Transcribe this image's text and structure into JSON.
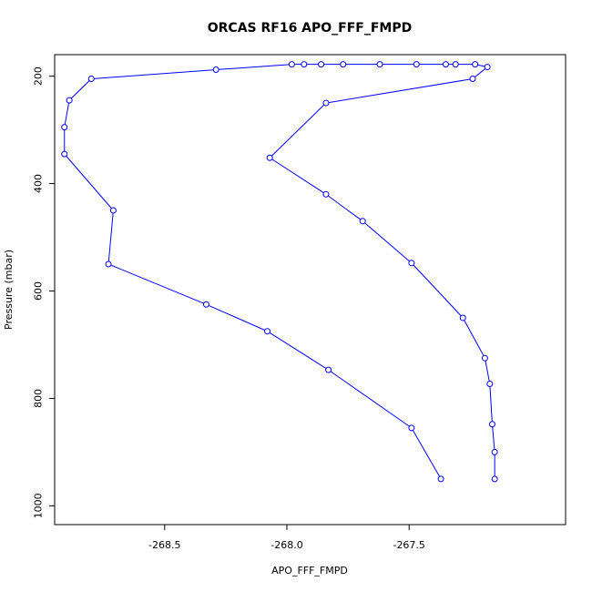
{
  "chart_data": {
    "type": "line",
    "title": "ORCAS RF16 APO_FFF_FMPD",
    "xlabel": "APO_FFF_FMPD",
    "ylabel": "Pressure (mbar)",
    "xlim": [
      -268.95,
      -266.86
    ],
    "ylim": [
      1035,
      160
    ],
    "y_inverted": true,
    "x_ticks": [
      -268.5,
      -268.0,
      -267.5
    ],
    "x_tick_labels": [
      "-268.5",
      "-268.0",
      "-267.5"
    ],
    "y_ticks": [
      200,
      400,
      600,
      800,
      1000
    ],
    "y_tick_labels": [
      "200",
      "400",
      "600",
      "800",
      "1000"
    ],
    "marker": "open-circle",
    "series": [
      {
        "color": "#0000ff",
        "x": [
          -267.37,
          -267.49,
          -267.83,
          -268.08,
          -268.33,
          -268.73,
          -268.71,
          -268.91,
          -268.91,
          -268.89,
          -268.8,
          -268.29,
          -267.98,
          -267.93,
          -267.86,
          -267.77,
          -267.62,
          -267.47,
          -267.35,
          -267.31,
          -267.23,
          -267.18,
          -267.24,
          -267.84,
          -268.07,
          -267.84,
          -267.69,
          -267.49,
          -267.28,
          -267.19,
          -267.17,
          -267.16,
          -267.15,
          -267.15
        ],
        "y": [
          950,
          855,
          747,
          675,
          625,
          550,
          450,
          345,
          295,
          245,
          205,
          188,
          178,
          178,
          178,
          178,
          178,
          178,
          178,
          178,
          178,
          183,
          205,
          250,
          352,
          420,
          470,
          548,
          650,
          725,
          773,
          848,
          900,
          950
        ]
      }
    ]
  }
}
